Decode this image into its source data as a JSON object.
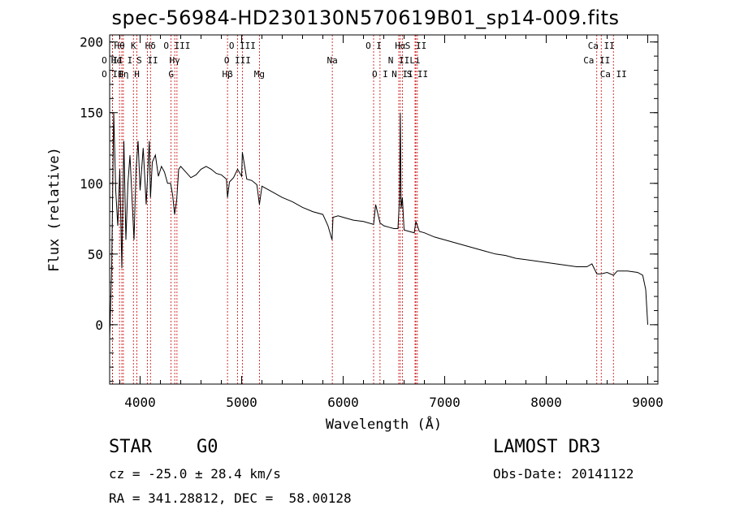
{
  "chart_data": {
    "type": "line",
    "title": "spec-56984-HD230130N570619B01_sp14-009.fits",
    "xlabel": "Wavelength (Å)",
    "ylabel": "Flux (relative)",
    "xlim": [
      3700,
      9100
    ],
    "ylim": [
      -42,
      205
    ],
    "x_ticks": [
      4000,
      5000,
      6000,
      7000,
      8000,
      9000
    ],
    "x_tick_labels": [
      "4000",
      "5000",
      "6000",
      "7000",
      "8000",
      "9000"
    ],
    "y_ticks": [
      0,
      50,
      100,
      150,
      200
    ],
    "y_tick_labels": [
      "0",
      "50",
      "100",
      "150",
      "200"
    ],
    "series": [
      {
        "name": "flux",
        "x": [
          3700,
          3720,
          3740,
          3760,
          3780,
          3800,
          3820,
          3840,
          3860,
          3880,
          3900,
          3920,
          3940,
          3960,
          3980,
          4000,
          4030,
          4060,
          4090,
          4102,
          4120,
          4150,
          4180,
          4210,
          4240,
          4270,
          4300,
          4320,
          4340,
          4360,
          4380,
          4400,
          4450,
          4500,
          4550,
          4600,
          4650,
          4700,
          4750,
          4800,
          4850,
          4861,
          4880,
          4920,
          4960,
          5000,
          5007,
          5050,
          5100,
          5150,
          5175,
          5200,
          5300,
          5400,
          5500,
          5600,
          5700,
          5800,
          5850,
          5890,
          5900,
          5950,
          6000,
          6100,
          6200,
          6300,
          6320,
          6363,
          6400,
          6450,
          6500,
          6540,
          6555,
          6563,
          6570,
          6583,
          6600,
          6650,
          6700,
          6716,
          6731,
          6750,
          6800,
          6900,
          7000,
          7100,
          7200,
          7300,
          7400,
          7500,
          7600,
          7700,
          7800,
          7900,
          8000,
          8100,
          8200,
          8300,
          8400,
          8450,
          8498,
          8542,
          8600,
          8662,
          8700,
          8800,
          8900,
          8950,
          8980,
          9000
        ],
        "values": [
          -10,
          40,
          150,
          95,
          70,
          110,
          40,
          130,
          60,
          100,
          120,
          90,
          60,
          110,
          130,
          95,
          125,
          85,
          130,
          90,
          115,
          120,
          105,
          112,
          108,
          100,
          100,
          92,
          78,
          88,
          110,
          112,
          108,
          104,
          106,
          110,
          112,
          110,
          107,
          106,
          103,
          90,
          101,
          104,
          110,
          105,
          122,
          103,
          102,
          99,
          85,
          98,
          94,
          90,
          87,
          83,
          80,
          78,
          70,
          60,
          76,
          77,
          76,
          74,
          73,
          71,
          85,
          72,
          70,
          69,
          68,
          68,
          90,
          150,
          82,
          90,
          67,
          66,
          65,
          73,
          70,
          66,
          65,
          62,
          60,
          58,
          56,
          54,
          52,
          50,
          49,
          47,
          46,
          45,
          44,
          43,
          42,
          41,
          41,
          43,
          36,
          36,
          37,
          35,
          38,
          38,
          37,
          35,
          25,
          0
        ]
      }
    ],
    "line_color": "#000000",
    "line_markers": [
      {
        "label": "O II",
        "x": 3727,
        "row": 2
      },
      {
        "label": "O II",
        "x": 3727,
        "row": 3
      },
      {
        "label": "Hθ",
        "x": 3797,
        "row": 1
      },
      {
        "label": "He I",
        "x": 3820,
        "row": 2
      },
      {
        "label": "Hη",
        "x": 3835,
        "row": 3
      },
      {
        "label": "K",
        "x": 3934,
        "row": 1
      },
      {
        "label": "H",
        "x": 3968,
        "row": 3
      },
      {
        "label": "S II",
        "x": 4071,
        "row": 2
      },
      {
        "label": "Hδ",
        "x": 4102,
        "row": 1
      },
      {
        "label": "O III",
        "x": 4363,
        "row": 1
      },
      {
        "label": "Hγ",
        "x": 4341,
        "row": 2
      },
      {
        "label": "G",
        "x": 4305,
        "row": 3
      },
      {
        "label": "Hβ",
        "x": 4861,
        "row": 3
      },
      {
        "label": "O III",
        "x": 5007,
        "row": 1
      },
      {
        "label": "O III",
        "x": 4959,
        "row": 2
      },
      {
        "label": "Mg",
        "x": 5175,
        "row": 3
      },
      {
        "label": "Na",
        "x": 5893,
        "row": 2
      },
      {
        "label": "O I",
        "x": 6300,
        "row": 1
      },
      {
        "label": "O I",
        "x": 6363,
        "row": 3
      },
      {
        "label": "Hα",
        "x": 6563,
        "row": 1
      },
      {
        "label": "N II",
        "x": 6548,
        "row": 2
      },
      {
        "label": "N II",
        "x": 6583,
        "row": 3
      },
      {
        "label": "S II",
        "x": 6716,
        "row": 1
      },
      {
        "label": "Li",
        "x": 6708,
        "row": 2
      },
      {
        "label": "S II",
        "x": 6731,
        "row": 3
      },
      {
        "label": "Ca II",
        "x": 8542,
        "row": 1
      },
      {
        "label": "Ca II",
        "x": 8498,
        "row": 2
      },
      {
        "label": "Ca II",
        "x": 8662,
        "row": 3
      }
    ],
    "marker_color": "#cc0000"
  },
  "info": {
    "object_class": "STAR",
    "subclass": "G0",
    "survey": "LAMOST DR3",
    "redshift": "cz = -25.0 ± 28.4 km/s",
    "obs_date": "Obs-Date: 20141122",
    "coords": "RA = 341.28812, DEC =  58.00128"
  }
}
